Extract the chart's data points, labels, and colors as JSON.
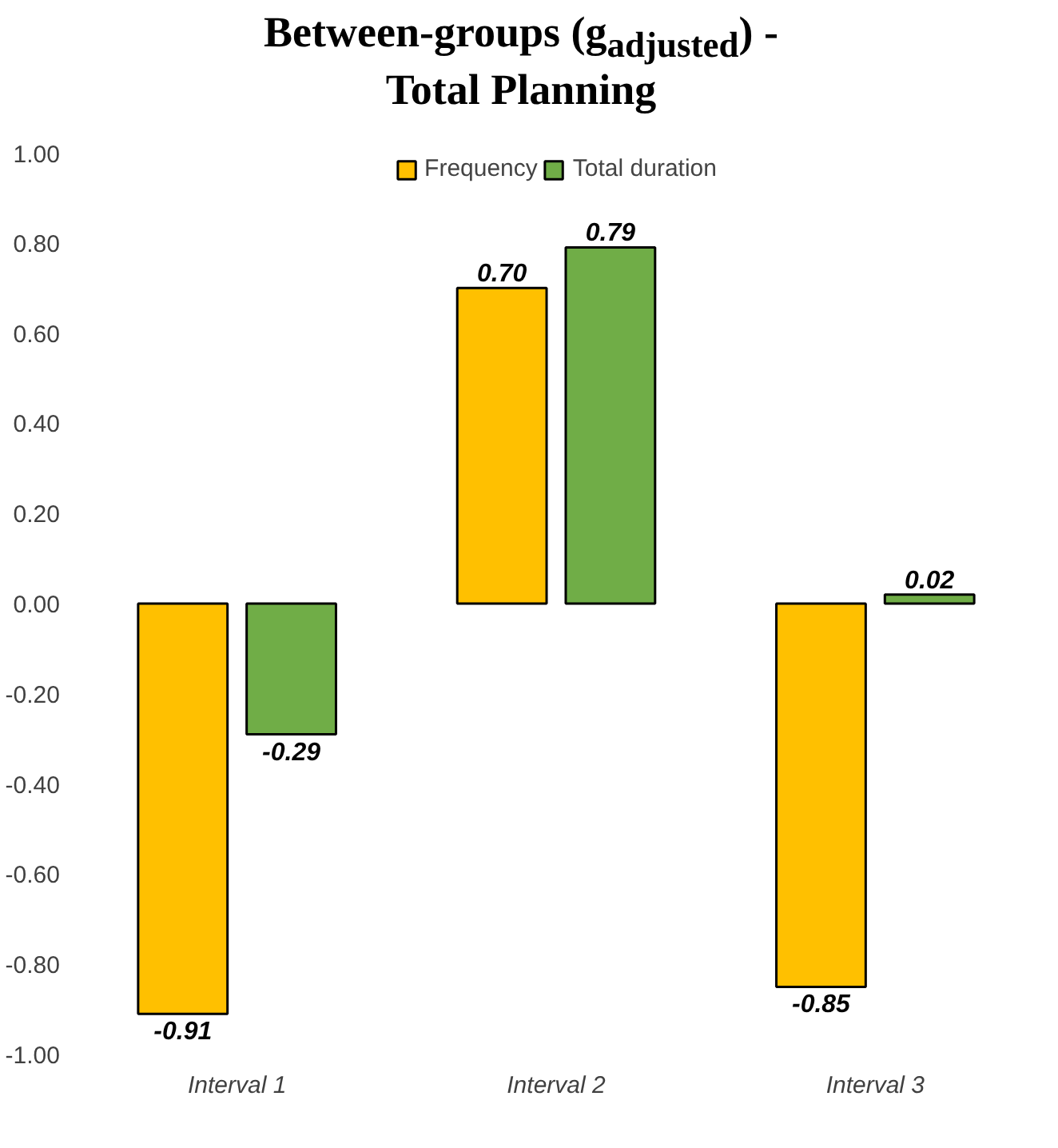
{
  "chart_data": {
    "type": "bar",
    "title": "Between-groups (g$_{adjusted}$) -\nTotal Planning",
    "categories": [
      "Interval 1",
      "Interval 2",
      "Interval 3"
    ],
    "series": [
      {
        "name": "Frequency",
        "color": "#ffc000",
        "values": [
          -0.91,
          0.7,
          -0.85
        ],
        "value_labels": [
          "-0.91",
          "0.70",
          "-0.85"
        ]
      },
      {
        "name": "Total duration",
        "color": "#70ad47",
        "values": [
          -0.29,
          0.79,
          0.02
        ],
        "value_labels": [
          "-0.29",
          "0.79",
          "0.02"
        ]
      }
    ],
    "ylim": [
      -1.0,
      1.0
    ],
    "yticks": [
      {
        "value": -1.0,
        "label": "-1.00"
      },
      {
        "value": -0.8,
        "label": "-0.80"
      },
      {
        "value": -0.6,
        "label": "-0.60"
      },
      {
        "value": -0.4,
        "label": "-0.40"
      },
      {
        "value": -0.2,
        "label": "-0.20"
      },
      {
        "value": 0.0,
        "label": "0.00"
      },
      {
        "value": 0.2,
        "label": "0.20"
      },
      {
        "value": 0.4,
        "label": "0.40"
      },
      {
        "value": 0.6,
        "label": "0.60"
      },
      {
        "value": 0.8,
        "label": "0.80"
      },
      {
        "value": 1.0,
        "label": "1.00"
      }
    ],
    "grid": false,
    "legend": "top"
  }
}
